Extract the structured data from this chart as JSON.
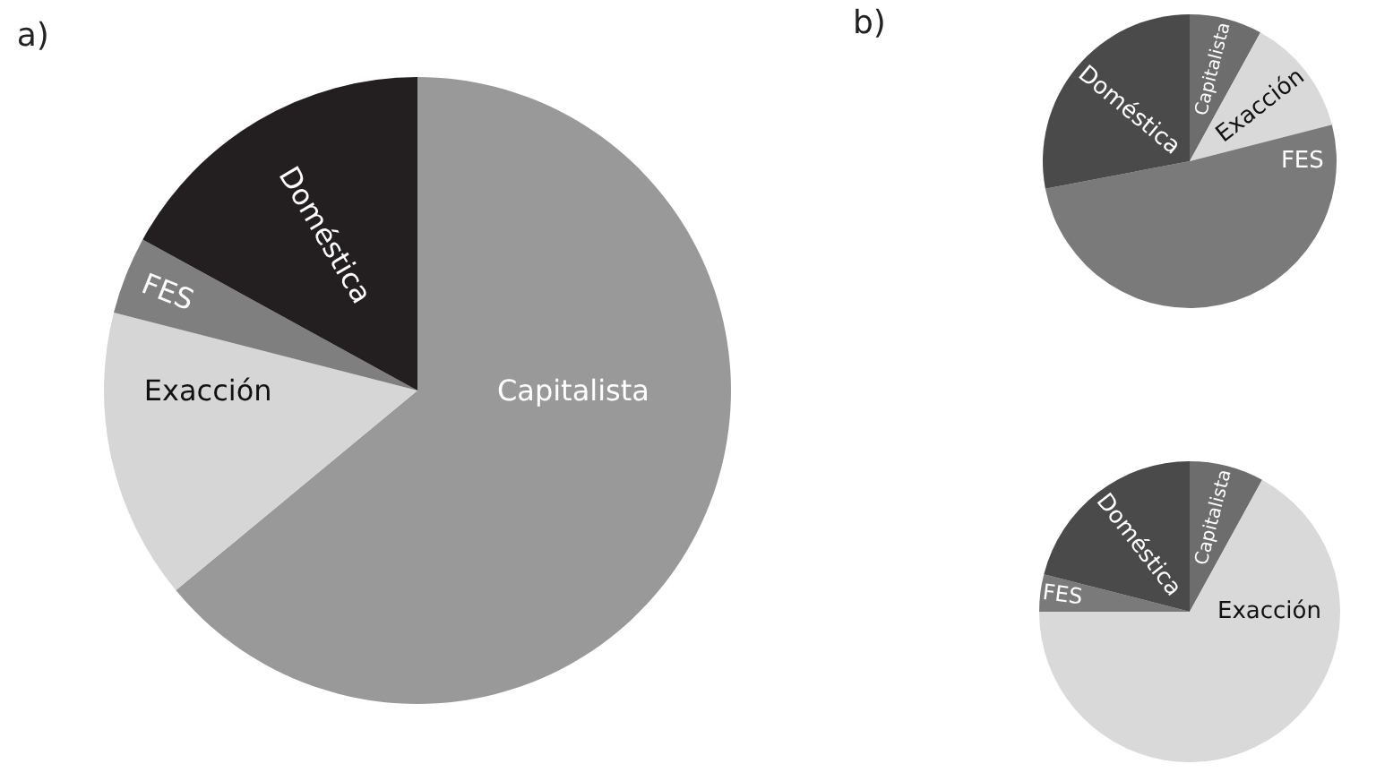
{
  "chart_data": [
    {
      "type": "pie",
      "title": "a)",
      "categories": [
        "Capitalista",
        "Exacción",
        "FES",
        "Doméstica"
      ],
      "values": [
        64,
        15,
        4,
        17
      ],
      "colors": [
        "#999999",
        "#d6d6d6",
        "#7f7f7f",
        "#231f20"
      ]
    },
    {
      "type": "pie",
      "title": "b)",
      "categories": [
        "Capitalista",
        "Exacción",
        "FES",
        "Doméstica"
      ],
      "values": [
        8,
        13,
        51,
        28
      ],
      "colors": [
        "#6d6d6d",
        "#d9d9d9",
        "#7a7a7a",
        "#4a4a4a"
      ]
    },
    {
      "type": "pie",
      "categories": [
        "Capitalista",
        "Exacción",
        "FES",
        "Doméstica"
      ],
      "values": [
        8,
        67,
        4,
        21
      ],
      "colors": [
        "#6d6d6d",
        "#d9d9d9",
        "#7a7a7a",
        "#4a4a4a"
      ]
    }
  ]
}
